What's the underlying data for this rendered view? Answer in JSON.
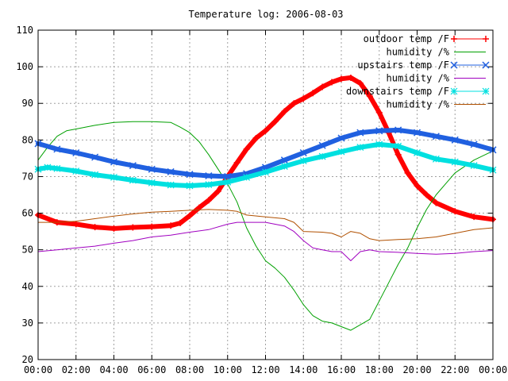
{
  "chart_data": {
    "type": "line",
    "title": "Temperature log: 2006-08-03",
    "xlabel": "",
    "ylabel": "",
    "xlim": [
      0,
      24
    ],
    "ylim": [
      20,
      110
    ],
    "grid": true,
    "legend_position": "top-right",
    "x_ticks": [
      0,
      2,
      4,
      6,
      8,
      10,
      12,
      14,
      16,
      18,
      20,
      22,
      24
    ],
    "x_tick_labels": [
      "00:00",
      "02:00",
      "04:00",
      "06:00",
      "08:00",
      "10:00",
      "12:00",
      "14:00",
      "16:00",
      "18:00",
      "20:00",
      "22:00",
      "00:00"
    ],
    "y_ticks": [
      20,
      30,
      40,
      50,
      60,
      70,
      80,
      90,
      100,
      110
    ],
    "y_tick_labels": [
      "20",
      "30",
      "40",
      "50",
      "60",
      "70",
      "80",
      "90",
      "100",
      "110"
    ],
    "series": [
      {
        "name": "outdoor temp /F",
        "color": "#ff0000",
        "marker": "plus",
        "thick": true,
        "x": [
          0,
          1,
          2,
          3,
          4,
          5,
          6,
          7,
          7.5,
          8,
          8.5,
          9,
          9.5,
          10,
          10.5,
          11,
          11.5,
          12,
          12.5,
          13,
          13.5,
          14,
          14.5,
          15,
          15.5,
          16,
          16.5,
          17,
          17.5,
          18,
          18.5,
          19,
          19.5,
          20,
          20.5,
          21,
          22,
          23,
          24
        ],
        "y": [
          59.5,
          57.5,
          57,
          56.2,
          55.8,
          56.1,
          56.3,
          56.6,
          57.3,
          59.3,
          61.5,
          63.5,
          66,
          70,
          73.8,
          77.5,
          80.5,
          82.5,
          85,
          87.8,
          90,
          91.3,
          92.8,
          94.5,
          95.8,
          96.7,
          97,
          95.5,
          92,
          87.5,
          82,
          76,
          71,
          67.5,
          65,
          62.8,
          60.5,
          59,
          58.3
        ]
      },
      {
        "name": "humidity /%",
        "color": "#00a000",
        "marker": "none",
        "thick": false,
        "x": [
          0,
          0.5,
          1,
          1.5,
          2,
          3,
          4,
          5,
          6,
          7,
          7.5,
          8,
          8.5,
          9,
          9.5,
          10,
          10.5,
          11,
          11.5,
          12,
          12.5,
          13,
          13.5,
          14,
          14.5,
          15,
          15.5,
          16,
          16.5,
          17,
          17.5,
          18,
          18.5,
          19,
          19.5,
          20,
          20.5,
          21,
          21.5,
          22,
          23,
          24
        ],
        "y": [
          74.5,
          78,
          81,
          82.5,
          83,
          84,
          84.8,
          85,
          85,
          84.8,
          83.5,
          82,
          79.5,
          76,
          72,
          68,
          63,
          56,
          51,
          47,
          45,
          42.5,
          39,
          35,
          32,
          30.5,
          30,
          29,
          28,
          29.5,
          31,
          36,
          41,
          46,
          50.5,
          56,
          61,
          65,
          68,
          71,
          74.5,
          77
        ]
      },
      {
        "name": "upstairs temp /F",
        "color": "#2060e0",
        "marker": "cross",
        "thick": true,
        "x": [
          0,
          1,
          2,
          3,
          4,
          5,
          6,
          7,
          8,
          9,
          10,
          11,
          12,
          13,
          14,
          15,
          16,
          17,
          18,
          19,
          20,
          21,
          22,
          23,
          24
        ],
        "y": [
          79,
          77.5,
          76.5,
          75.3,
          74,
          73,
          72,
          71.3,
          70.6,
          70.2,
          70,
          70.8,
          72.5,
          74.5,
          76.5,
          78.5,
          80.5,
          82,
          82.5,
          82.7,
          82,
          81,
          80,
          78.8,
          77.3
        ]
      },
      {
        "name": "humidity /%",
        "color": "#a000c0",
        "marker": "none",
        "thick": false,
        "x": [
          0,
          1,
          2,
          3,
          4,
          5,
          6,
          7,
          8,
          9,
          10,
          10.5,
          11,
          12,
          13,
          13.5,
          14,
          14.5,
          15,
          15.5,
          16,
          16.5,
          17,
          17.5,
          18,
          19,
          20,
          21,
          22,
          23,
          24
        ],
        "y": [
          49.5,
          50,
          50.5,
          51,
          51.8,
          52.5,
          53.5,
          54,
          54.8,
          55.5,
          57,
          57.5,
          57.5,
          57.5,
          56.5,
          55,
          52.5,
          50.5,
          50,
          49.5,
          49.5,
          47,
          49.5,
          50,
          49.5,
          49.3,
          49,
          48.8,
          49,
          49.5,
          49.8
        ]
      },
      {
        "name": "downstairs temp /F",
        "color": "#00e0e0",
        "marker": "star",
        "thick": true,
        "x": [
          0,
          0.5,
          1,
          2,
          3,
          4,
          5,
          6,
          7,
          8,
          9,
          10,
          11,
          12,
          13,
          14,
          15,
          16,
          17,
          18,
          19,
          20,
          21,
          22,
          23,
          24
        ],
        "y": [
          72,
          72.5,
          72.2,
          71.5,
          70.5,
          69.8,
          69,
          68.3,
          67.7,
          67.5,
          67.8,
          68.5,
          69.8,
          71.2,
          72.8,
          74.3,
          75.5,
          76.8,
          78,
          78.8,
          78.3,
          76.5,
          74.8,
          74,
          73,
          71.8
        ]
      },
      {
        "name": "humidity /%",
        "color": "#b05000",
        "marker": "none",
        "thick": false,
        "x": [
          0,
          1,
          2,
          3,
          4,
          5,
          6,
          7,
          8,
          9,
          10,
          10.5,
          11,
          12,
          13,
          13.5,
          14,
          15,
          15.5,
          16,
          16.5,
          17,
          17.5,
          18,
          19,
          20,
          21,
          22,
          23,
          24
        ],
        "y": [
          57.5,
          57.5,
          57.8,
          58.5,
          59.2,
          59.8,
          60.3,
          60.5,
          60.8,
          61,
          60.8,
          60.5,
          59.5,
          59,
          58.5,
          57.5,
          55,
          54.8,
          54.5,
          53.5,
          55,
          54.5,
          53,
          52.5,
          52.8,
          53,
          53.5,
          54.5,
          55.5,
          56
        ]
      }
    ]
  }
}
